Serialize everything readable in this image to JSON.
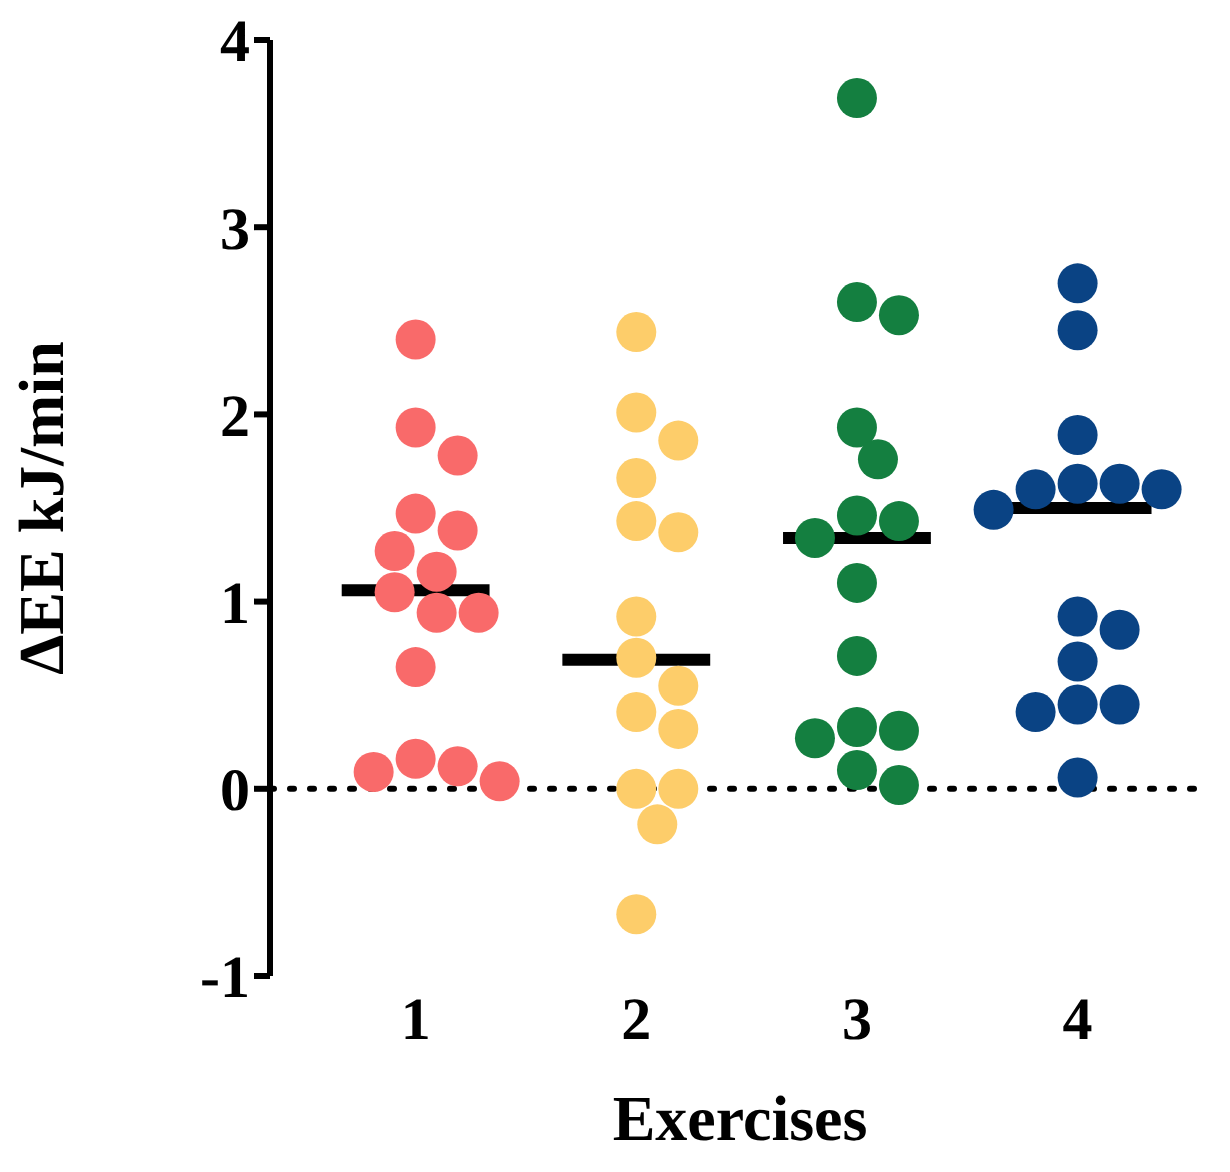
{
  "chart_data": {
    "type": "scatter",
    "xlabel": "Exercises",
    "ylabel": "ΔEE kJ/min",
    "categories": [
      "1",
      "2",
      "3",
      "4"
    ],
    "ylim": [
      -1,
      4
    ],
    "yticks": [
      -1,
      0,
      1,
      2,
      3,
      4
    ],
    "grid": false,
    "legend": false,
    "marker": "circle",
    "ref_lines": [
      {
        "axis": "y",
        "value": 0,
        "color": "#000000",
        "line_style": "dotted"
      }
    ],
    "series": [
      {
        "color": "#f96a6a",
        "x": [
          "1",
          "1",
          "1",
          "1",
          "1",
          "1",
          "1",
          "1",
          "1",
          "1",
          "1",
          "1",
          "1",
          "1",
          "1"
        ],
        "values": [
          2.4,
          1.93,
          1.78,
          1.47,
          1.38,
          1.27,
          1.16,
          1.05,
          0.94,
          0.94,
          0.65,
          0.16,
          0.04,
          0.09,
          0.12
        ]
      },
      {
        "color": "#fdcd6a",
        "x": [
          "2",
          "2",
          "2",
          "2",
          "2",
          "2",
          "2",
          "2",
          "2",
          "2",
          "2",
          "2",
          "2",
          "2",
          "2"
        ],
        "values": [
          2.44,
          2.01,
          1.86,
          1.66,
          1.43,
          1.37,
          0.92,
          0.7,
          0.55,
          0.41,
          0.32,
          0.0,
          0.0,
          -0.19,
          -0.67
        ]
      },
      {
        "color": "#147f40",
        "x": [
          "3",
          "3",
          "3",
          "3",
          "3",
          "3",
          "3",
          "3",
          "3",
          "3",
          "3",
          "3",
          "3",
          "3",
          "3"
        ],
        "values": [
          3.69,
          2.6,
          2.53,
          1.93,
          1.76,
          1.46,
          1.43,
          1.34,
          1.1,
          0.71,
          0.31,
          0.27,
          0.33,
          0.1,
          0.02
        ]
      },
      {
        "color": "#0a4384",
        "x": [
          "4",
          "4",
          "4",
          "4",
          "4",
          "4",
          "4",
          "4",
          "4",
          "4",
          "4",
          "4",
          "4",
          "4",
          "4"
        ],
        "values": [
          2.7,
          2.45,
          1.89,
          1.63,
          1.63,
          1.6,
          1.6,
          1.49,
          0.92,
          0.85,
          0.68,
          0.45,
          0.45,
          0.41,
          0.06
        ]
      },
      {
        "type": "box",
        "color": "#000000",
        "boxes": [
          {
            "low": 1.06,
            "q1": 1.06,
            "median": 1.06,
            "q3": 1.06,
            "high": 1.06
          },
          {
            "low": 0.69,
            "q1": 0.69,
            "median": 0.69,
            "q3": 0.69,
            "high": 0.69
          },
          {
            "low": 1.34,
            "q1": 1.34,
            "median": 1.34,
            "q3": 1.34,
            "high": 1.34
          },
          {
            "low": 1.5,
            "q1": 1.5,
            "median": 1.5,
            "q3": 1.5,
            "high": 1.5
          }
        ]
      }
    ]
  }
}
